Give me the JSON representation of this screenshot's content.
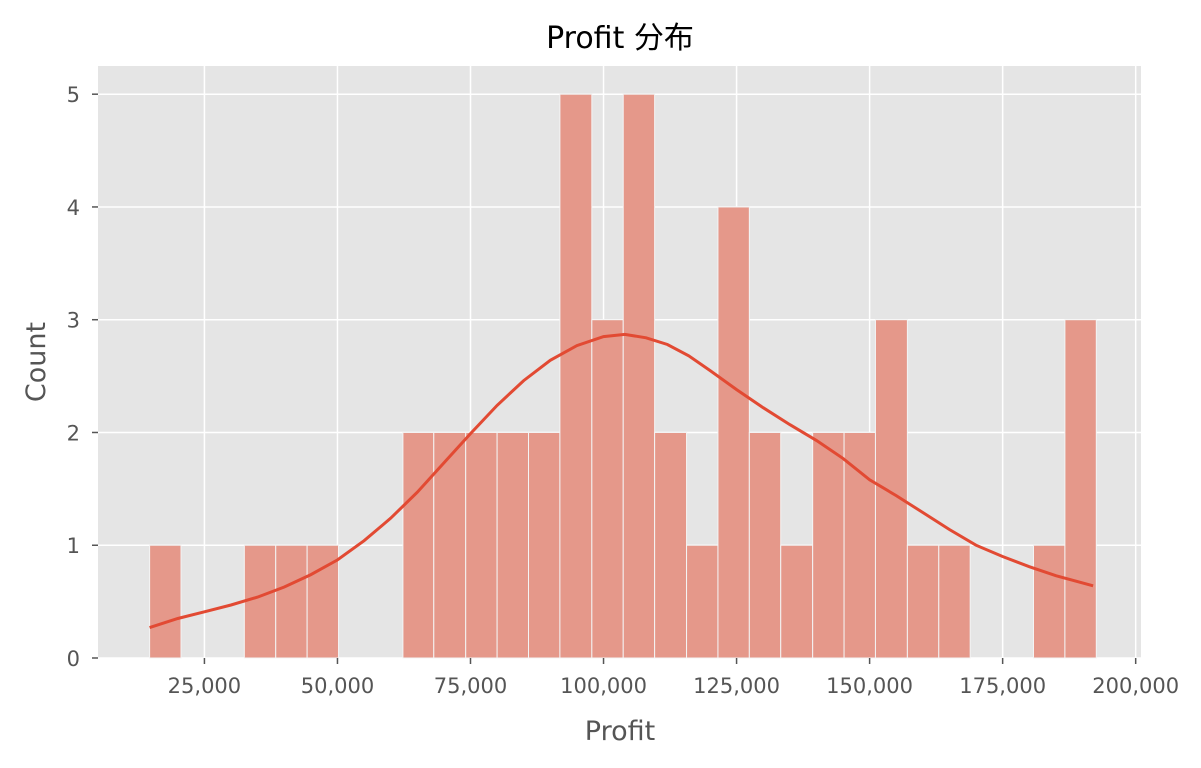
{
  "chart_data": {
    "type": "bar",
    "title": "Profit 分布",
    "xlabel": "Profit",
    "ylabel": "Count",
    "xlim": [
      5000,
      201000
    ],
    "ylim": [
      0,
      5.25
    ],
    "grid": true,
    "x_ticks": [
      {
        "value": 25000,
        "label": "25,000"
      },
      {
        "value": 50000,
        "label": "50,000"
      },
      {
        "value": 75000,
        "label": "75,000"
      },
      {
        "value": 100000,
        "label": "100,000"
      },
      {
        "value": 125000,
        "label": "125,000"
      },
      {
        "value": 150000,
        "label": "150,000"
      },
      {
        "value": 175000,
        "label": "175,000"
      },
      {
        "value": 200000,
        "label": "200,000"
      }
    ],
    "y_ticks": [
      {
        "value": 0,
        "label": "0"
      },
      {
        "value": 1,
        "label": "1"
      },
      {
        "value": 2,
        "label": "2"
      },
      {
        "value": 3,
        "label": "3"
      },
      {
        "value": 4,
        "label": "4"
      },
      {
        "value": 5,
        "label": "5"
      }
    ],
    "bins": [
      {
        "x0": 14700,
        "x1": 20600,
        "count": 1
      },
      {
        "x0": 20600,
        "x1": 26500,
        "count": 0
      },
      {
        "x0": 26500,
        "x1": 32500,
        "count": 0
      },
      {
        "x0": 32500,
        "x1": 38400,
        "count": 1
      },
      {
        "x0": 38400,
        "x1": 44300,
        "count": 1
      },
      {
        "x0": 44300,
        "x1": 50200,
        "count": 1
      },
      {
        "x0": 50200,
        "x1": 56200,
        "count": 0
      },
      {
        "x0": 56200,
        "x1": 62300,
        "count": 0
      },
      {
        "x0": 62300,
        "x1": 68100,
        "count": 2
      },
      {
        "x0": 68100,
        "x1": 74100,
        "count": 2
      },
      {
        "x0": 74100,
        "x1": 80000,
        "count": 2
      },
      {
        "x0": 80000,
        "x1": 85900,
        "count": 2
      },
      {
        "x0": 85900,
        "x1": 91800,
        "count": 2
      },
      {
        "x0": 91800,
        "x1": 97800,
        "count": 5
      },
      {
        "x0": 97800,
        "x1": 103700,
        "count": 3
      },
      {
        "x0": 103700,
        "x1": 109600,
        "count": 5
      },
      {
        "x0": 109600,
        "x1": 115600,
        "count": 2
      },
      {
        "x0": 115600,
        "x1": 121500,
        "count": 1
      },
      {
        "x0": 121500,
        "x1": 127400,
        "count": 4
      },
      {
        "x0": 127400,
        "x1": 133300,
        "count": 2
      },
      {
        "x0": 133300,
        "x1": 139300,
        "count": 1
      },
      {
        "x0": 139300,
        "x1": 145200,
        "count": 2
      },
      {
        "x0": 145200,
        "x1": 151100,
        "count": 2
      },
      {
        "x0": 151100,
        "x1": 157100,
        "count": 3
      },
      {
        "x0": 157100,
        "x1": 163000,
        "count": 1
      },
      {
        "x0": 163000,
        "x1": 168900,
        "count": 1
      },
      {
        "x0": 168900,
        "x1": 174800,
        "count": 0
      },
      {
        "x0": 174800,
        "x1": 180800,
        "count": 0
      },
      {
        "x0": 180800,
        "x1": 186700,
        "count": 1
      },
      {
        "x0": 186700,
        "x1": 192600,
        "count": 3
      }
    ],
    "kde": {
      "x": [
        14700,
        20000,
        25000,
        30000,
        35000,
        40000,
        45000,
        50000,
        55000,
        60000,
        65000,
        70000,
        75000,
        80000,
        85000,
        90000,
        95000,
        100000,
        104000,
        108000,
        112000,
        116000,
        120000,
        125000,
        130000,
        135000,
        140000,
        145000,
        150000,
        155000,
        160000,
        165000,
        170000,
        175000,
        180000,
        185000,
        192000
      ],
      "y": [
        0.27,
        0.35,
        0.41,
        0.47,
        0.54,
        0.63,
        0.74,
        0.87,
        1.04,
        1.24,
        1.47,
        1.73,
        1.99,
        2.24,
        2.46,
        2.64,
        2.77,
        2.85,
        2.87,
        2.84,
        2.78,
        2.68,
        2.55,
        2.38,
        2.22,
        2.07,
        1.93,
        1.77,
        1.58,
        1.44,
        1.29,
        1.14,
        1.0,
        0.9,
        0.81,
        0.73,
        0.64
      ]
    },
    "colors": {
      "bar": "#e5988a",
      "bar_edge": "#f4f4f4",
      "kde": "#e24a33",
      "plot_bg": "#e5e5e5",
      "grid": "#ffffff",
      "tick": "#555555"
    }
  }
}
